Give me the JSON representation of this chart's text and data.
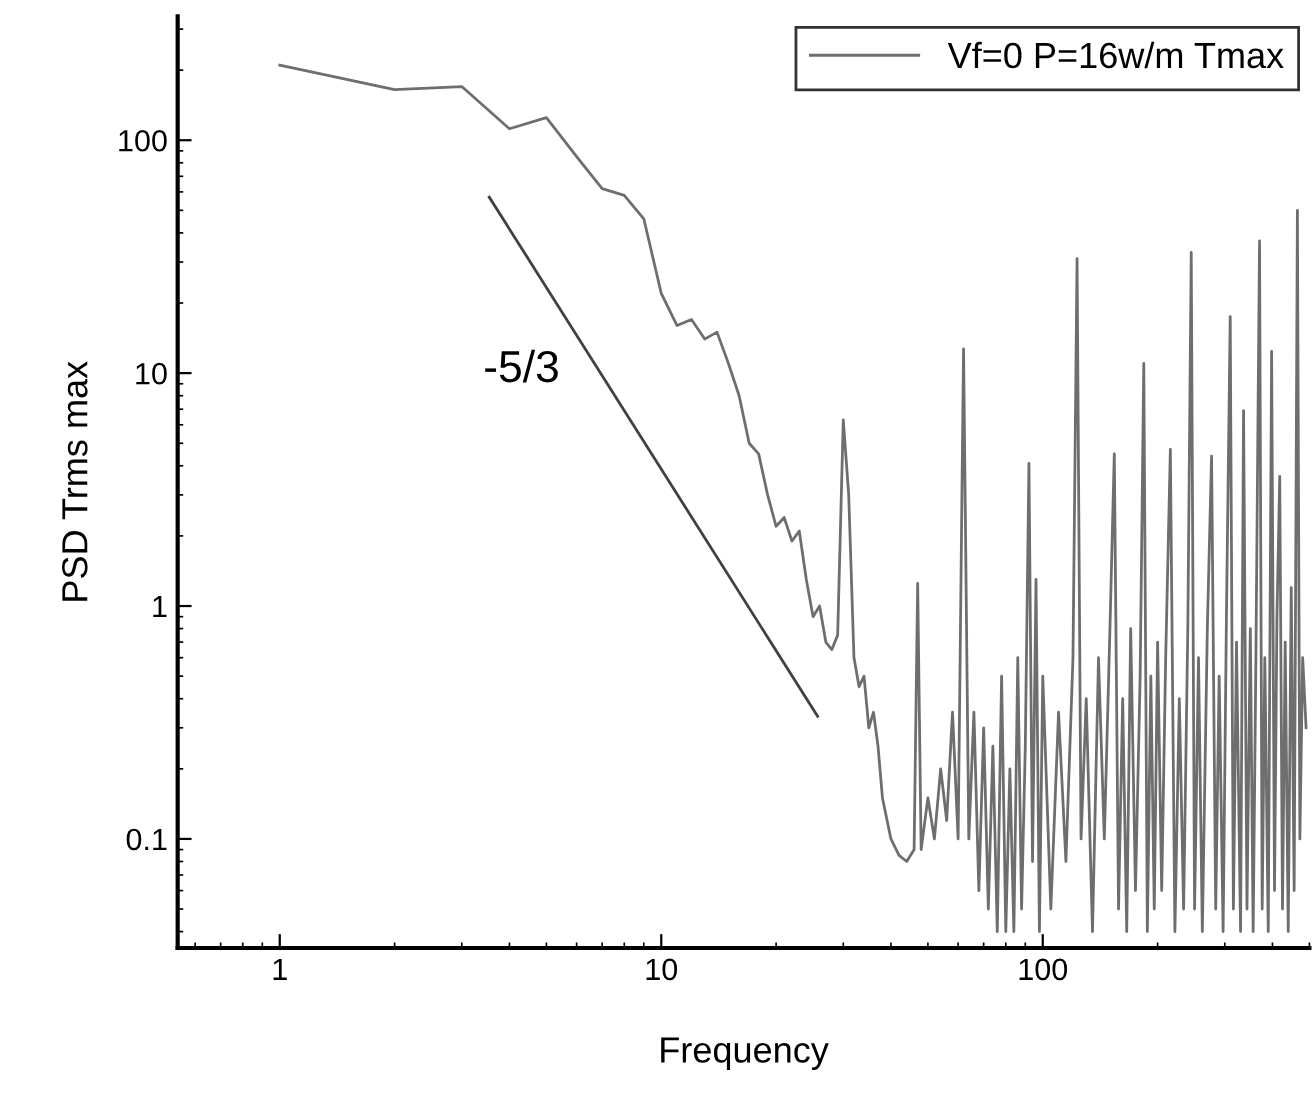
{
  "chart_data": {
    "type": "line",
    "xlabel": "Frequency",
    "ylabel": "PSD Trms max",
    "log": "xy",
    "xlim": [
      0.54,
      500
    ],
    "ylim": [
      0.034,
      340
    ],
    "xticks": [
      1,
      10,
      100
    ],
    "yticks": [
      0.1,
      1,
      10,
      100
    ],
    "grid": false,
    "legend": "top right",
    "marker": "none",
    "line_style": "solid",
    "annotations": [
      "-5/3"
    ],
    "series": [
      {
        "name": "Vf=0 P=16w/m Tmax",
        "color": "#6e6e6e",
        "x": [
          1,
          2,
          3,
          4,
          5,
          6,
          7,
          8,
          9,
          10,
          11,
          12,
          13,
          14,
          15,
          16,
          17,
          18,
          19,
          20,
          21,
          22,
          23,
          24,
          25,
          26,
          27,
          28,
          29,
          30,
          31,
          32,
          33,
          34,
          35,
          36,
          37,
          38,
          40,
          42,
          44,
          46,
          47,
          48,
          50,
          52,
          54,
          56,
          58,
          60,
          62,
          64,
          66,
          68,
          70,
          72,
          74,
          76,
          78,
          80,
          82,
          84,
          86,
          88,
          90,
          92,
          94,
          96,
          98,
          100,
          105,
          110,
          115,
          120,
          123,
          126,
          130,
          135,
          140,
          145,
          150,
          154,
          158,
          162,
          166,
          170,
          175,
          180,
          184,
          188,
          192,
          196,
          200,
          205,
          210,
          216,
          222,
          228,
          234,
          240,
          245,
          250,
          256,
          262,
          270,
          277,
          284,
          290,
          297,
          303,
          310,
          316,
          322,
          330,
          336,
          343,
          350,
          356,
          362,
          370,
          376,
          382,
          390,
          398,
          405,
          411,
          418,
          425,
          432,
          440,
          448,
          456,
          465,
          472,
          480,
          490
        ],
        "values": [
          210,
          165,
          170,
          112,
          125,
          85,
          62,
          58,
          46,
          22,
          16,
          17,
          14,
          15,
          11,
          8,
          5,
          4.5,
          3,
          2.2,
          2.4,
          1.9,
          2.1,
          1.3,
          0.9,
          1.0,
          0.7,
          0.65,
          0.75,
          6.3,
          3,
          0.6,
          0.45,
          0.5,
          0.3,
          0.35,
          0.25,
          0.15,
          0.1,
          0.085,
          0.08,
          0.09,
          1.25,
          0.09,
          0.15,
          0.1,
          0.2,
          0.12,
          0.35,
          0.1,
          12.7,
          0.1,
          0.35,
          0.06,
          0.3,
          0.05,
          0.25,
          0.04,
          0.5,
          0.04,
          0.2,
          0.04,
          0.6,
          0.05,
          0.25,
          4.1,
          0.08,
          1.3,
          0.04,
          0.5,
          0.05,
          0.35,
          0.08,
          0.6,
          31,
          0.1,
          0.4,
          0.04,
          0.6,
          0.1,
          0.8,
          4.5,
          0.05,
          0.4,
          0.04,
          0.8,
          0.06,
          0.5,
          11,
          0.04,
          0.5,
          0.05,
          0.7,
          0.06,
          0.6,
          4.7,
          0.04,
          0.4,
          0.05,
          0.8,
          33,
          0.05,
          0.6,
          0.04,
          0.8,
          4.4,
          0.05,
          0.5,
          0.04,
          0.9,
          17.5,
          0.05,
          0.7,
          0.04,
          6.9,
          0.05,
          0.8,
          0.04,
          0.6,
          37,
          0.05,
          0.6,
          0.04,
          12.4,
          0.06,
          0.9,
          3.6,
          0.05,
          0.7,
          0.04,
          1.2,
          0.06,
          50,
          0.1,
          0.6,
          0.3
        ]
      },
      {
        "color": "#404040",
        "x": [
          3.54,
          25.7
        ],
        "values": [
          57,
          0.336
        ]
      }
    ]
  }
}
